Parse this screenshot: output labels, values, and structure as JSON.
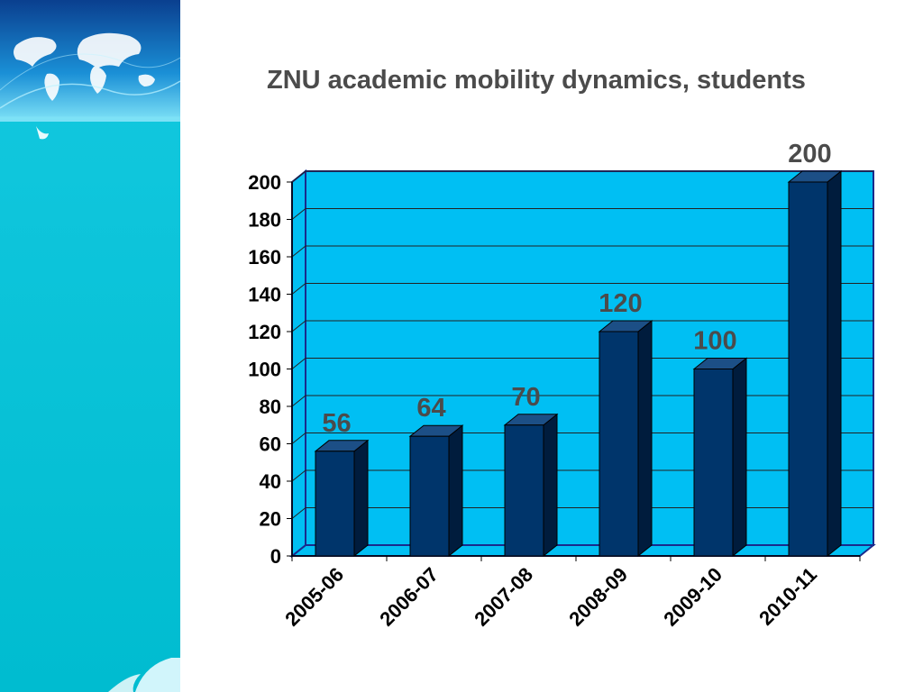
{
  "slide": {
    "title": "ZNU academic mobility dynamics, students"
  },
  "colors": {
    "plot_background": "#00bff3",
    "plot_border": "#1a2a8c",
    "bar_front": "#00356b",
    "bar_top": "#1c4f86",
    "bar_side": "#001c3d",
    "gridline": "#222222",
    "data_label": "#4b4b4b",
    "sidebar_teal": "#00c4d6"
  },
  "chart_data": {
    "type": "bar",
    "title": "ZNU academic mobility dynamics, students",
    "categories": [
      "2005-06",
      "2006-07",
      "2007-08",
      "2008-09",
      "2009-10",
      "2010-11"
    ],
    "values": [
      56,
      64,
      70,
      120,
      100,
      200
    ],
    "data_labels": [
      "56",
      "64",
      "70",
      "120",
      "100",
      "200"
    ],
    "ylim": [
      0,
      200
    ],
    "yticks": [
      0,
      20,
      40,
      60,
      80,
      100,
      120,
      140,
      160,
      180,
      200
    ],
    "ytick_labels": [
      "0",
      "20",
      "40",
      "60",
      "80",
      "100",
      "120",
      "140",
      "160",
      "180",
      "200"
    ],
    "xlabel": "",
    "ylabel": "",
    "grid": true,
    "legend": false,
    "style": "3d-column"
  }
}
